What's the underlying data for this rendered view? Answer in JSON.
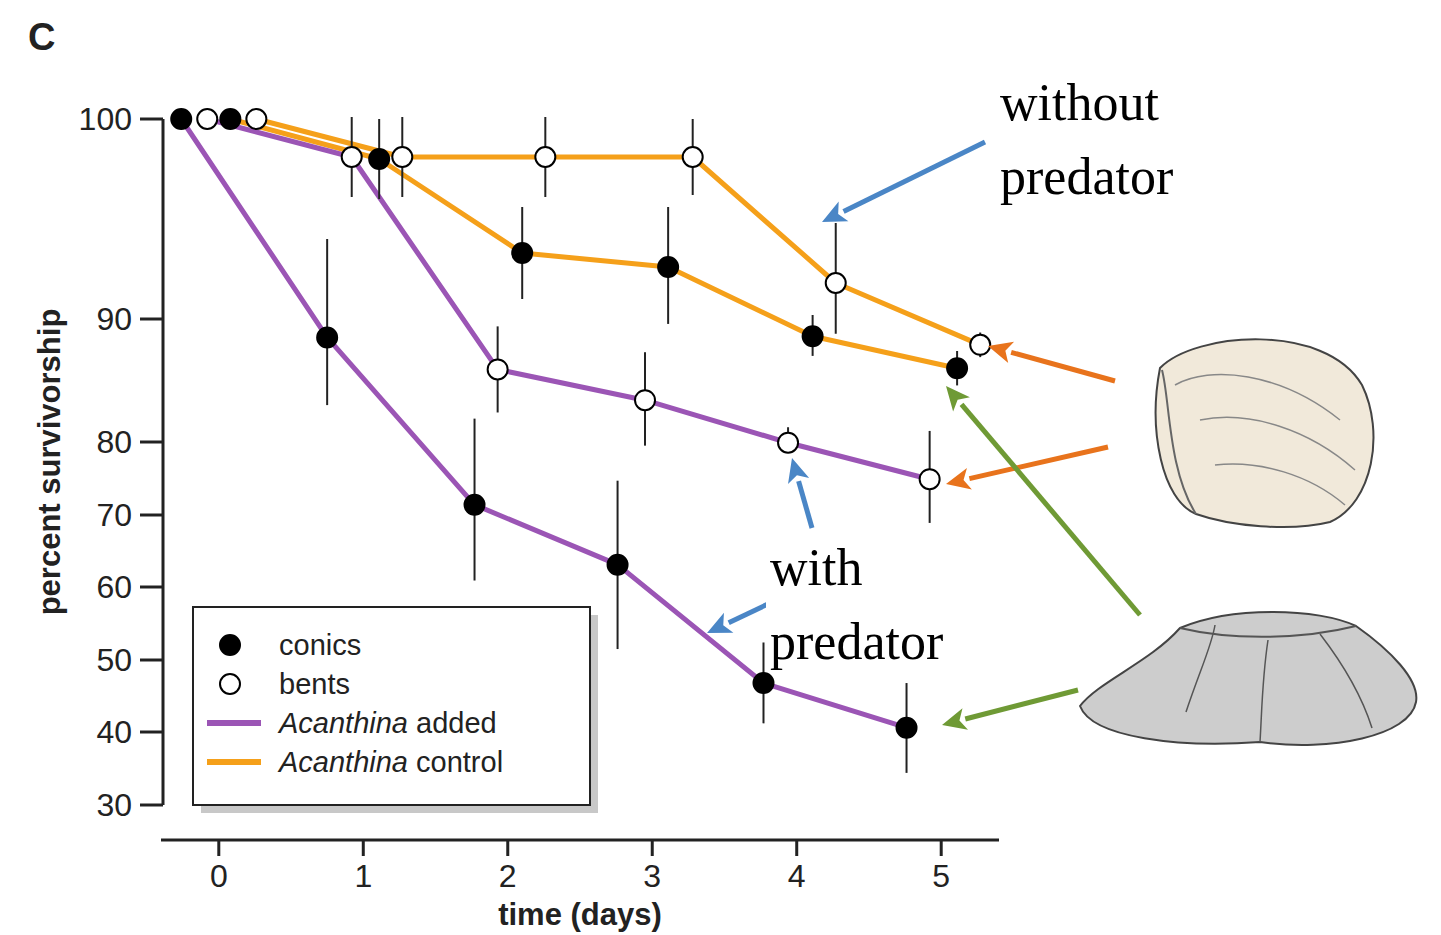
{
  "chart_data": {
    "type": "line",
    "panel_label": "C",
    "x_label": "time (days)",
    "y_label": "percent survivorship",
    "xlim": [
      -0.4,
      5.4
    ],
    "xticks": [
      0,
      1,
      2,
      3,
      4,
      5
    ],
    "ylim": [
      30,
      100
    ],
    "yticks": [
      30,
      40,
      50,
      60,
      70,
      80,
      90,
      100
    ],
    "legend": "lower left",
    "legend_items": [
      {
        "label": "conics",
        "marker": "filled"
      },
      {
        "label": "bents",
        "marker": "open"
      },
      {
        "label": "Acanthina added",
        "color": "#9b55b5"
      },
      {
        "label": "Acanthina control",
        "color": "#f5a01a"
      }
    ],
    "series": [
      {
        "color": "#f5a01a",
        "marker": "open",
        "line_style": "solid",
        "x": [
          0.26,
          1.27,
          2.26,
          3.28,
          4.27,
          5.27
        ],
        "values": [
          100,
          98.1,
          98.1,
          98.1,
          91.8,
          87.9
        ],
        "errors": [
          0,
          2,
          2,
          1.9,
          3,
          1
        ]
      },
      {
        "color": "#f5a01a",
        "marker": "filled",
        "line_style": "solid",
        "x": [
          0.08,
          1.11,
          2.1,
          3.11,
          4.11,
          5.11
        ],
        "values": [
          100,
          98.0,
          93.3,
          92.6,
          88.6,
          86.0
        ],
        "errors": [
          0,
          2,
          2.3,
          3,
          1.6,
          1.4
        ]
      },
      {
        "color": "#9b55b5",
        "marker": "open",
        "line_style": "solid",
        "x": [
          -0.08,
          0.92,
          1.93,
          2.95,
          3.94,
          4.92
        ],
        "values": [
          100,
          98.1,
          85.9,
          83.4,
          79.9,
          74.9
        ],
        "errors": [
          0,
          2,
          3.5,
          3.9,
          1.3,
          6
        ]
      },
      {
        "color": "#9b55b5",
        "marker": "filled",
        "line_style": "solid",
        "x": [
          -0.26,
          0.75,
          1.77,
          2.76,
          3.77,
          4.76
        ],
        "values": [
          100,
          88.5,
          71.4,
          63.1,
          46.8,
          40.6
        ],
        "errors": [
          0,
          5.5,
          10.5,
          11.6,
          5.6,
          6.2
        ]
      }
    ],
    "annotations": [
      {
        "text": "without predator"
      },
      {
        "text": "with predator"
      }
    ]
  }
}
